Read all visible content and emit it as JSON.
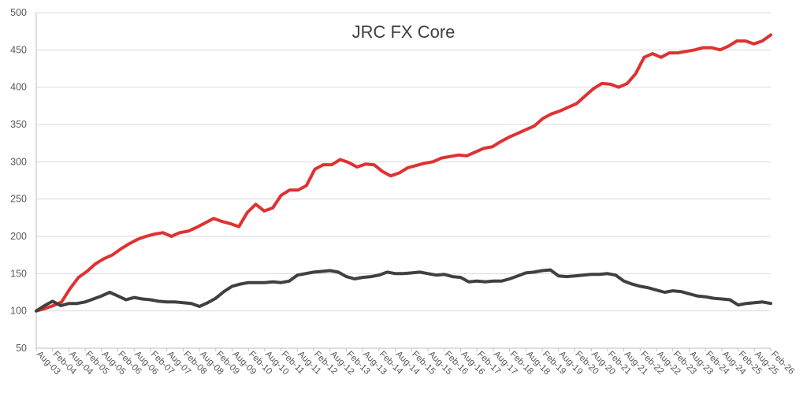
{
  "chart_data": {
    "type": "line",
    "title": "JRC FX Core",
    "xlabel": "",
    "ylabel": "",
    "ylim": [
      50,
      500
    ],
    "yticks": [
      50,
      100,
      150,
      200,
      250,
      300,
      350,
      400,
      450,
      500
    ],
    "grid": "horizontal",
    "legend": "none",
    "x_tick_labels": [
      "Aug-03",
      "Feb-04",
      "Aug-04",
      "Feb-05",
      "Aug-05",
      "Feb-06",
      "Aug-06",
      "Feb-07",
      "Aug-07",
      "Feb-08",
      "Aug-08",
      "Feb-09",
      "Aug-09",
      "Feb-10",
      "Aug-10",
      "Feb-11",
      "Aug-11",
      "Feb-12",
      "Aug-12",
      "Feb-13",
      "Aug-13",
      "Feb-14",
      "Aug-14",
      "Feb-15",
      "Aug-15",
      "Feb-16",
      "Aug-16",
      "Feb-17",
      "Aug-17",
      "Feb-18",
      "Aug-18",
      "Feb-19",
      "Aug-19",
      "Feb-20",
      "Aug-20",
      "Feb-21",
      "Aug-21",
      "Feb-22",
      "Aug-22",
      "Feb-23",
      "Aug-23",
      "Feb-24",
      "Aug-24",
      "Feb-25",
      "Aug-25",
      "Feb-26"
    ],
    "series": [
      {
        "color": "#e03131",
        "values": [
          100,
          103,
          107,
          112,
          130,
          145,
          153,
          163,
          170,
          175,
          183,
          190,
          196,
          200,
          203,
          205,
          200,
          205,
          207,
          212,
          218,
          224,
          220,
          217,
          213,
          232,
          243,
          234,
          238,
          255,
          262,
          262,
          268,
          290,
          296,
          296,
          303,
          299,
          293,
          297,
          296,
          287,
          281,
          285,
          292,
          295,
          298,
          300,
          305,
          307,
          309,
          308,
          313,
          318,
          320,
          327,
          333,
          338,
          343,
          348,
          358,
          364,
          368,
          373,
          378,
          388,
          398,
          405,
          404,
          400,
          405,
          418,
          440,
          445,
          440,
          446,
          446,
          448,
          450,
          453,
          453,
          450,
          455,
          462,
          462,
          458,
          462,
          470
        ]
      },
      {
        "color": "#404040",
        "values": [
          100,
          107,
          113,
          107,
          110,
          110,
          112,
          116,
          120,
          125,
          120,
          115,
          118,
          116,
          115,
          113,
          112,
          112,
          111,
          110,
          106,
          111,
          117,
          126,
          133,
          136,
          138,
          138,
          138,
          139,
          138,
          140,
          148,
          150,
          152,
          153,
          154,
          152,
          146,
          143,
          145,
          146,
          148,
          152,
          150,
          150,
          151,
          152,
          150,
          148,
          149,
          146,
          145,
          139,
          140,
          139,
          140,
          140,
          143,
          147,
          151,
          152,
          154,
          155,
          147,
          146,
          147,
          148,
          149,
          149,
          150,
          148,
          140,
          136,
          133,
          131,
          128,
          125,
          127,
          126,
          123,
          120,
          119,
          117,
          116,
          115,
          108,
          110,
          111,
          112,
          110
        ]
      }
    ]
  }
}
